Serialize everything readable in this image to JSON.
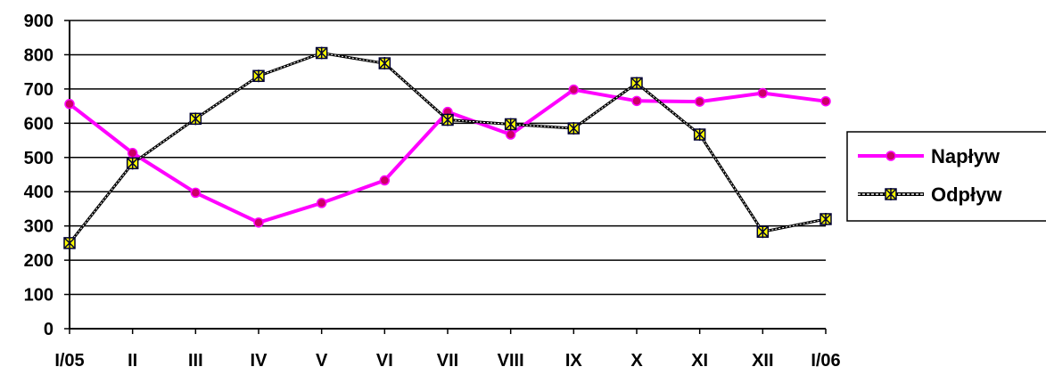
{
  "chart_data": {
    "type": "line",
    "categories": [
      "I/05",
      "II",
      "III",
      "IV",
      "V",
      "VI",
      "VII",
      "VIII",
      "IX",
      "X",
      "XI",
      "XII",
      "I/06"
    ],
    "ylim": [
      0,
      900
    ],
    "yticks": [
      0,
      100,
      200,
      300,
      400,
      500,
      600,
      700,
      800,
      900
    ],
    "grid": true,
    "legend_position": "right",
    "series": [
      {
        "name": "Napływ",
        "color": "#ff00ff",
        "marker": "circle",
        "marker_color": "#cc0066",
        "values": [
          656,
          513,
          397,
          310,
          367,
          433,
          633,
          567,
          698,
          665,
          663,
          688,
          664
        ]
      },
      {
        "name": "Odpływ",
        "color": "#000000",
        "line_style": "dotted",
        "marker": "star",
        "marker_color": "#ffff00",
        "values": [
          250,
          483,
          613,
          738,
          805,
          775,
          610,
          597,
          585,
          717,
          567,
          283,
          320
        ]
      }
    ]
  }
}
